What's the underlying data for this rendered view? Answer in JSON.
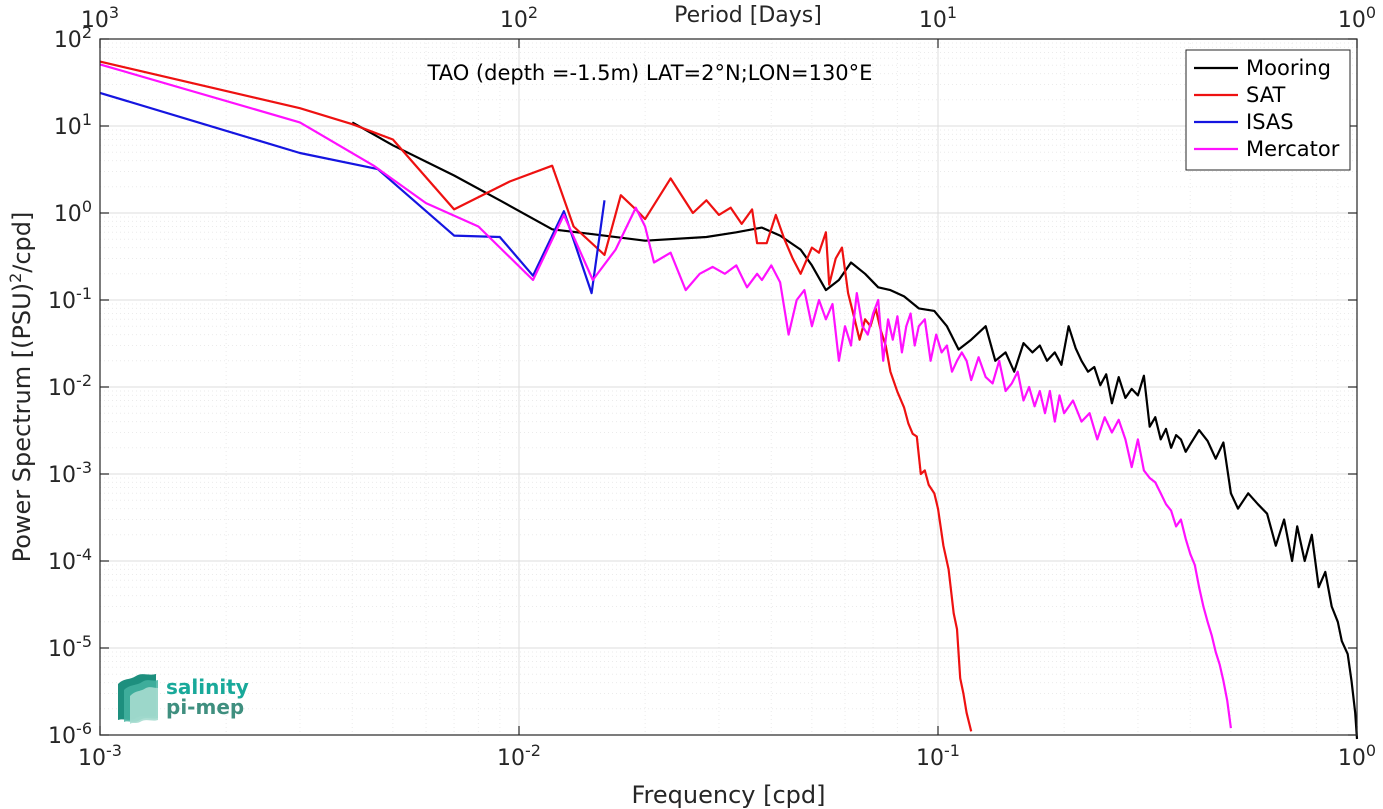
{
  "chart_data": {
    "type": "line",
    "title": "",
    "annotation": "TAO (depth =-1.5m) LAT=2°N;LON=130°E",
    "xlabel": "Frequency [cpd]",
    "ylabel_parts": [
      "Power Spectrum [(PSU)",
      "2",
      "/cpd]"
    ],
    "top_xlabel": "Period [Days]",
    "xscale": "log",
    "yscale": "log",
    "xlim": [
      0.001,
      1
    ],
    "ylim": [
      1e-06,
      100
    ],
    "grid": true,
    "legend_position": "top-right",
    "x_ticks": [
      {
        "value": 0.001,
        "base": "10",
        "exp": "-3"
      },
      {
        "value": 0.01,
        "base": "10",
        "exp": "-2"
      },
      {
        "value": 0.1,
        "base": "10",
        "exp": "-1"
      },
      {
        "value": 1,
        "base": "10",
        "exp": "0"
      }
    ],
    "top_ticks": [
      {
        "value": 0.001,
        "base": "10",
        "exp": "3"
      },
      {
        "value": 0.01,
        "base": "10",
        "exp": "2"
      },
      {
        "value": 0.1,
        "base": "10",
        "exp": "1"
      },
      {
        "value": 1,
        "base": "10",
        "exp": "0"
      }
    ],
    "y_ticks": [
      {
        "value": 100,
        "base": "10",
        "exp": "2"
      },
      {
        "value": 10,
        "base": "10",
        "exp": "1"
      },
      {
        "value": 1,
        "base": "10",
        "exp": "0"
      },
      {
        "value": 0.1,
        "base": "10",
        "exp": "-1"
      },
      {
        "value": 0.01,
        "base": "10",
        "exp": "-2"
      },
      {
        "value": 0.001,
        "base": "10",
        "exp": "-3"
      },
      {
        "value": 0.0001,
        "base": "10",
        "exp": "-4"
      },
      {
        "value": 1e-05,
        "base": "10",
        "exp": "-5"
      },
      {
        "value": 1e-06,
        "base": "10",
        "exp": "-6"
      }
    ],
    "series": [
      {
        "name": "Mooring",
        "color": "#000000",
        "points": [
          [
            0.004,
            11
          ],
          [
            0.005,
            6
          ],
          [
            0.007,
            2.7
          ],
          [
            0.009,
            1.4
          ],
          [
            0.012,
            0.65
          ],
          [
            0.015,
            0.57
          ],
          [
            0.02,
            0.48
          ],
          [
            0.028,
            0.53
          ],
          [
            0.033,
            0.6
          ],
          [
            0.038,
            0.68
          ],
          [
            0.042,
            0.55
          ],
          [
            0.047,
            0.38
          ],
          [
            0.05,
            0.25
          ],
          [
            0.054,
            0.13
          ],
          [
            0.058,
            0.17
          ],
          [
            0.062,
            0.27
          ],
          [
            0.067,
            0.2
          ],
          [
            0.072,
            0.14
          ],
          [
            0.077,
            0.13
          ],
          [
            0.083,
            0.11
          ],
          [
            0.09,
            0.08
          ],
          [
            0.098,
            0.075
          ],
          [
            0.105,
            0.05
          ],
          [
            0.112,
            0.027
          ],
          [
            0.12,
            0.035
          ],
          [
            0.13,
            0.05
          ],
          [
            0.137,
            0.02
          ],
          [
            0.145,
            0.025
          ],
          [
            0.152,
            0.015
          ],
          [
            0.16,
            0.032
          ],
          [
            0.168,
            0.025
          ],
          [
            0.175,
            0.03
          ],
          [
            0.182,
            0.02
          ],
          [
            0.19,
            0.025
          ],
          [
            0.197,
            0.018
          ],
          [
            0.205,
            0.05
          ],
          [
            0.213,
            0.028
          ],
          [
            0.22,
            0.02
          ],
          [
            0.228,
            0.015
          ],
          [
            0.236,
            0.017
          ],
          [
            0.244,
            0.0105
          ],
          [
            0.252,
            0.014
          ],
          [
            0.26,
            0.0065
          ],
          [
            0.27,
            0.013
          ],
          [
            0.28,
            0.0075
          ],
          [
            0.29,
            0.0095
          ],
          [
            0.3,
            0.008
          ],
          [
            0.31,
            0.0135
          ],
          [
            0.32,
            0.0035
          ],
          [
            0.33,
            0.0045
          ],
          [
            0.34,
            0.0025
          ],
          [
            0.35,
            0.0033
          ],
          [
            0.36,
            0.002
          ],
          [
            0.37,
            0.0028
          ],
          [
            0.38,
            0.0025
          ],
          [
            0.39,
            0.0018
          ],
          [
            0.4,
            0.0022
          ],
          [
            0.42,
            0.0032
          ],
          [
            0.44,
            0.0024
          ],
          [
            0.46,
            0.0015
          ],
          [
            0.48,
            0.0023
          ],
          [
            0.5,
            0.0006
          ],
          [
            0.52,
            0.0004
          ],
          [
            0.55,
            0.0006
          ],
          [
            0.58,
            0.00045
          ],
          [
            0.61,
            0.00035
          ],
          [
            0.64,
            0.00015
          ],
          [
            0.67,
            0.0003
          ],
          [
            0.7,
            0.0001
          ],
          [
            0.72,
            0.00025
          ],
          [
            0.75,
            0.0001
          ],
          [
            0.78,
            0.0002
          ],
          [
            0.81,
            5e-05
          ],
          [
            0.84,
            7.5e-05
          ],
          [
            0.87,
            3e-05
          ],
          [
            0.9,
            2e-05
          ],
          [
            0.92,
            1.2e-05
          ],
          [
            0.95,
            8.5e-06
          ],
          [
            0.97,
            4.2e-06
          ],
          [
            0.99,
            1.8e-06
          ],
          [
            1.0,
            9e-07
          ]
        ]
      },
      {
        "name": "SAT",
        "color": "#ee1111",
        "points": [
          [
            0.001,
            55
          ],
          [
            0.003,
            16
          ],
          [
            0.004,
            10.5
          ],
          [
            0.005,
            7
          ],
          [
            0.007,
            1.1
          ],
          [
            0.0095,
            2.3
          ],
          [
            0.012,
            3.5
          ],
          [
            0.0135,
            0.7
          ],
          [
            0.016,
            0.33
          ],
          [
            0.0175,
            1.6
          ],
          [
            0.019,
            1.1
          ],
          [
            0.02,
            0.85
          ],
          [
            0.023,
            2.5
          ],
          [
            0.026,
            1
          ],
          [
            0.028,
            1.4
          ],
          [
            0.03,
            0.95
          ],
          [
            0.032,
            1.15
          ],
          [
            0.034,
            0.75
          ],
          [
            0.036,
            1.1
          ],
          [
            0.037,
            0.45
          ],
          [
            0.039,
            0.45
          ],
          [
            0.041,
            0.95
          ],
          [
            0.043,
            0.5
          ],
          [
            0.045,
            0.3
          ],
          [
            0.047,
            0.2
          ],
          [
            0.05,
            0.4
          ],
          [
            0.052,
            0.35
          ],
          [
            0.054,
            0.6
          ],
          [
            0.055,
            0.15
          ],
          [
            0.057,
            0.3
          ],
          [
            0.059,
            0.4
          ],
          [
            0.061,
            0.12
          ],
          [
            0.063,
            0.065
          ],
          [
            0.065,
            0.035
          ],
          [
            0.067,
            0.06
          ],
          [
            0.069,
            0.05
          ],
          [
            0.071,
            0.08
          ],
          [
            0.073,
            0.045
          ],
          [
            0.075,
            0.03
          ],
          [
            0.077,
            0.015
          ],
          [
            0.08,
            0.0088
          ],
          [
            0.083,
            0.0058
          ],
          [
            0.085,
            0.0038
          ],
          [
            0.087,
            0.0029
          ],
          [
            0.089,
            0.0027
          ],
          [
            0.091,
            0.001
          ],
          [
            0.093,
            0.0011
          ],
          [
            0.095,
            0.00075
          ],
          [
            0.098,
            0.0006
          ],
          [
            0.1,
            0.0004
          ],
          [
            0.103,
            0.00015
          ],
          [
            0.106,
            8e-05
          ],
          [
            0.109,
            2.5e-05
          ],
          [
            0.111,
            1.65e-05
          ],
          [
            0.113,
            4.5e-06
          ],
          [
            0.115,
            3e-06
          ],
          [
            0.117,
            1.8e-06
          ],
          [
            0.12,
            1.1e-06
          ]
        ]
      },
      {
        "name": "ISAS",
        "color": "#1515e0",
        "points": [
          [
            0.001,
            24
          ],
          [
            0.003,
            4.9
          ],
          [
            0.0046,
            3.2
          ],
          [
            0.007,
            0.55
          ],
          [
            0.009,
            0.53
          ],
          [
            0.0108,
            0.19
          ],
          [
            0.0128,
            1.05
          ],
          [
            0.0149,
            0.12
          ],
          [
            0.016,
            1.4
          ]
        ]
      },
      {
        "name": "Mercator",
        "color": "#ff11ff",
        "points": [
          [
            0.001,
            51
          ],
          [
            0.003,
            11
          ],
          [
            0.0045,
            3.5
          ],
          [
            0.006,
            1.3
          ],
          [
            0.008,
            0.7
          ],
          [
            0.0108,
            0.17
          ],
          [
            0.0128,
            0.95
          ],
          [
            0.015,
            0.17
          ],
          [
            0.017,
            0.38
          ],
          [
            0.019,
            1.15
          ],
          [
            0.02,
            0.7
          ],
          [
            0.021,
            0.27
          ],
          [
            0.023,
            0.35
          ],
          [
            0.025,
            0.13
          ],
          [
            0.027,
            0.2
          ],
          [
            0.029,
            0.24
          ],
          [
            0.031,
            0.2
          ],
          [
            0.033,
            0.25
          ],
          [
            0.035,
            0.14
          ],
          [
            0.037,
            0.2
          ],
          [
            0.038,
            0.17
          ],
          [
            0.04,
            0.25
          ],
          [
            0.042,
            0.16
          ],
          [
            0.044,
            0.04
          ],
          [
            0.046,
            0.1
          ],
          [
            0.048,
            0.13
          ],
          [
            0.05,
            0.05
          ],
          [
            0.052,
            0.1
          ],
          [
            0.054,
            0.06
          ],
          [
            0.056,
            0.09
          ],
          [
            0.058,
            0.02
          ],
          [
            0.06,
            0.05
          ],
          [
            0.062,
            0.03
          ],
          [
            0.064,
            0.12
          ],
          [
            0.066,
            0.05
          ],
          [
            0.068,
            0.04
          ],
          [
            0.07,
            0.07
          ],
          [
            0.072,
            0.1
          ],
          [
            0.074,
            0.02
          ],
          [
            0.076,
            0.06
          ],
          [
            0.078,
            0.035
          ],
          [
            0.08,
            0.065
          ],
          [
            0.082,
            0.025
          ],
          [
            0.084,
            0.05
          ],
          [
            0.086,
            0.07
          ],
          [
            0.088,
            0.03
          ],
          [
            0.09,
            0.05
          ],
          [
            0.093,
            0.06
          ],
          [
            0.096,
            0.02
          ],
          [
            0.099,
            0.04
          ],
          [
            0.102,
            0.025
          ],
          [
            0.105,
            0.03
          ],
          [
            0.108,
            0.015
          ],
          [
            0.111,
            0.02
          ],
          [
            0.114,
            0.025
          ],
          [
            0.117,
            0.02
          ],
          [
            0.12,
            0.012
          ],
          [
            0.125,
            0.022
          ],
          [
            0.13,
            0.013
          ],
          [
            0.135,
            0.011
          ],
          [
            0.14,
            0.02
          ],
          [
            0.145,
            0.009
          ],
          [
            0.15,
            0.011
          ],
          [
            0.155,
            0.015
          ],
          [
            0.16,
            0.007
          ],
          [
            0.165,
            0.01
          ],
          [
            0.17,
            0.006
          ],
          [
            0.175,
            0.009
          ],
          [
            0.18,
            0.005
          ],
          [
            0.185,
            0.009
          ],
          [
            0.19,
            0.004
          ],
          [
            0.195,
            0.008
          ],
          [
            0.2,
            0.005
          ],
          [
            0.21,
            0.007
          ],
          [
            0.22,
            0.004
          ],
          [
            0.23,
            0.005
          ],
          [
            0.24,
            0.0025
          ],
          [
            0.25,
            0.0045
          ],
          [
            0.26,
            0.003
          ],
          [
            0.27,
            0.0042
          ],
          [
            0.28,
            0.0025
          ],
          [
            0.29,
            0.0012
          ],
          [
            0.3,
            0.0025
          ],
          [
            0.31,
            0.0011
          ],
          [
            0.32,
            0.0009
          ],
          [
            0.33,
            0.0008
          ],
          [
            0.34,
            0.0006
          ],
          [
            0.35,
            0.00045
          ],
          [
            0.36,
            0.00038
          ],
          [
            0.37,
            0.00025
          ],
          [
            0.38,
            0.0003
          ],
          [
            0.39,
            0.00018
          ],
          [
            0.4,
            0.00012
          ],
          [
            0.41,
            9e-05
          ],
          [
            0.42,
            5e-05
          ],
          [
            0.43,
            3e-05
          ],
          [
            0.44,
            2e-05
          ],
          [
            0.45,
            1.4e-05
          ],
          [
            0.46,
            9e-06
          ],
          [
            0.47,
            6.5e-06
          ],
          [
            0.48,
            4.2e-06
          ],
          [
            0.49,
            2.5e-06
          ],
          [
            0.5,
            1.2e-06
          ]
        ]
      }
    ],
    "logo": {
      "line1": "salinity",
      "line2": "pi-mep"
    },
    "colors": {
      "axes": "#262626",
      "grid": "#dcdcdc",
      "minor_grid": "#ebebeb"
    }
  }
}
